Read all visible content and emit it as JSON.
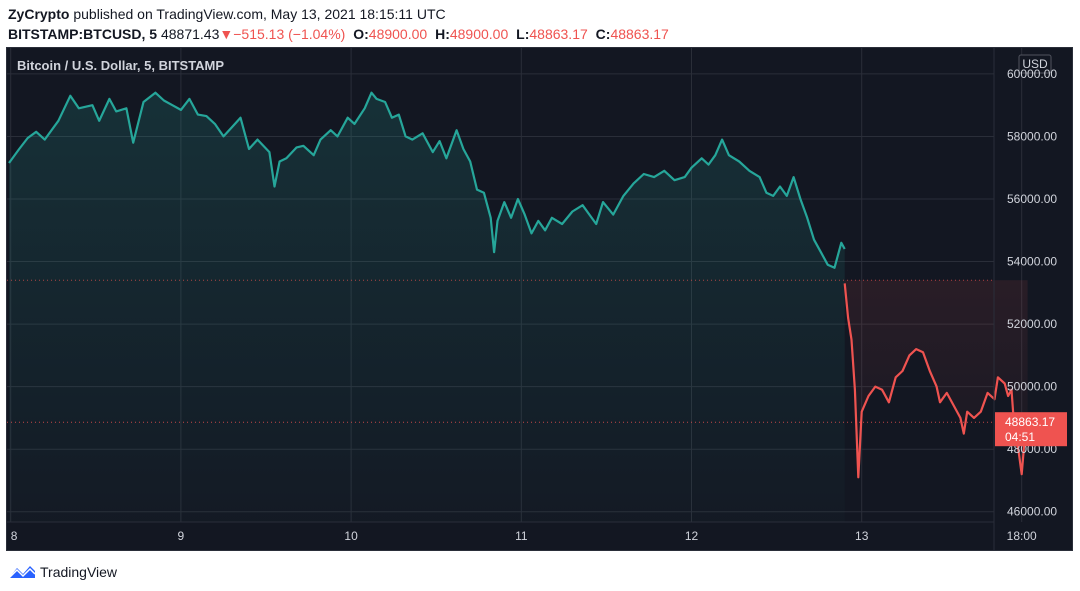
{
  "header": {
    "author": "ZyCrypto",
    "published_text": "published on TradingView.com, May 13, 2021 18:15:11 UTC",
    "symbol": "BITSTAMP:BTCUSD, 5",
    "last_price": "48871.43",
    "change": "−515.13 (−1.04%)",
    "o_label": "O:",
    "o_value": "48900.00",
    "h_label": "H:",
    "h_value": "48900.00",
    "l_label": "L:",
    "l_value": "48863.17",
    "c_label": "C:",
    "c_value": "48863.17"
  },
  "chart": {
    "legend_title": "Bitcoin / U.S. Dollar, 5, BITSTAMP",
    "currency": "USD",
    "price_tag": "48863.17",
    "countdown": "04:51"
  },
  "footer": {
    "brand": "TradingView"
  },
  "colors": {
    "up": "#26a69a",
    "down": "#ef5350",
    "background": "#131722",
    "grid": "#2a2e39"
  },
  "chart_data": {
    "type": "area",
    "title": "Bitcoin / U.S. Dollar, 5, BITSTAMP",
    "xlabel": "",
    "ylabel": "",
    "x_ticks": [
      "8",
      "9",
      "10",
      "11",
      "12",
      "13",
      "18:00"
    ],
    "y_ticks": [
      "46000.00",
      "48000.00",
      "50000.00",
      "52000.00",
      "54000.00",
      "56000.00",
      "58000.00",
      "60000.00"
    ],
    "ylim": [
      45800,
      60700
    ],
    "baseline": 53400,
    "last_value": 48863.17,
    "grid": true,
    "series": [
      {
        "color": "#26a69a",
        "points": [
          [
            7.99,
            57150
          ],
          [
            8.05,
            57600
          ],
          [
            8.1,
            57950
          ],
          [
            8.15,
            58150
          ],
          [
            8.2,
            57900
          ],
          [
            8.28,
            58500
          ],
          [
            8.35,
            59300
          ],
          [
            8.4,
            58900
          ],
          [
            8.48,
            59000
          ],
          [
            8.52,
            58500
          ],
          [
            8.58,
            59200
          ],
          [
            8.62,
            58800
          ],
          [
            8.68,
            58900
          ],
          [
            8.72,
            57800
          ],
          [
            8.78,
            59100
          ],
          [
            8.85,
            59400
          ],
          [
            8.9,
            59150
          ],
          [
            8.95,
            59000
          ],
          [
            9.0,
            58850
          ],
          [
            9.05,
            59200
          ],
          [
            9.1,
            58700
          ],
          [
            9.15,
            58650
          ],
          [
            9.2,
            58400
          ],
          [
            9.25,
            58000
          ],
          [
            9.3,
            58300
          ],
          [
            9.35,
            58600
          ],
          [
            9.4,
            57600
          ],
          [
            9.45,
            57900
          ],
          [
            9.52,
            57500
          ],
          [
            9.55,
            56400
          ],
          [
            9.58,
            57200
          ],
          [
            9.62,
            57300
          ],
          [
            9.68,
            57650
          ],
          [
            9.72,
            57700
          ],
          [
            9.78,
            57400
          ],
          [
            9.82,
            57900
          ],
          [
            9.88,
            58200
          ],
          [
            9.92,
            58000
          ],
          [
            9.98,
            58600
          ],
          [
            10.02,
            58400
          ],
          [
            10.08,
            58900
          ],
          [
            10.12,
            59400
          ],
          [
            10.15,
            59200
          ],
          [
            10.2,
            59100
          ],
          [
            10.24,
            58600
          ],
          [
            10.28,
            58700
          ],
          [
            10.32,
            58000
          ],
          [
            10.36,
            57900
          ],
          [
            10.42,
            58100
          ],
          [
            10.48,
            57500
          ],
          [
            10.52,
            57850
          ],
          [
            10.56,
            57300
          ],
          [
            10.62,
            58200
          ],
          [
            10.66,
            57600
          ],
          [
            10.7,
            57200
          ],
          [
            10.74,
            56300
          ],
          [
            10.78,
            56200
          ],
          [
            10.82,
            55400
          ],
          [
            10.84,
            54300
          ],
          [
            10.86,
            55300
          ],
          [
            10.9,
            55900
          ],
          [
            10.94,
            55400
          ],
          [
            10.98,
            56000
          ],
          [
            11.02,
            55500
          ],
          [
            11.06,
            54900
          ],
          [
            11.1,
            55300
          ],
          [
            11.14,
            55000
          ],
          [
            11.18,
            55400
          ],
          [
            11.24,
            55200
          ],
          [
            11.3,
            55600
          ],
          [
            11.36,
            55800
          ],
          [
            11.4,
            55500
          ],
          [
            11.44,
            55200
          ],
          [
            11.48,
            55900
          ],
          [
            11.54,
            55500
          ],
          [
            11.6,
            56100
          ],
          [
            11.66,
            56500
          ],
          [
            11.72,
            56800
          ],
          [
            11.78,
            56700
          ],
          [
            11.84,
            56900
          ],
          [
            11.9,
            56600
          ],
          [
            11.96,
            56700
          ],
          [
            12.0,
            57000
          ],
          [
            12.06,
            57300
          ],
          [
            12.1,
            57100
          ],
          [
            12.14,
            57400
          ],
          [
            12.18,
            57900
          ],
          [
            12.22,
            57400
          ],
          [
            12.28,
            57200
          ],
          [
            12.34,
            56900
          ],
          [
            12.4,
            56700
          ],
          [
            12.44,
            56200
          ],
          [
            12.48,
            56100
          ],
          [
            12.52,
            56400
          ],
          [
            12.56,
            56100
          ],
          [
            12.6,
            56700
          ],
          [
            12.64,
            56000
          ],
          [
            12.68,
            55400
          ],
          [
            12.72,
            54700
          ],
          [
            12.76,
            54300
          ],
          [
            12.8,
            53900
          ],
          [
            12.84,
            53800
          ],
          [
            12.88,
            54600
          ],
          [
            12.9,
            54400
          ]
        ]
      },
      {
        "color": "#ef5350",
        "points": [
          [
            12.9,
            53300
          ],
          [
            12.92,
            52200
          ],
          [
            12.94,
            51500
          ],
          [
            12.96,
            49900
          ],
          [
            12.98,
            47100
          ],
          [
            13.0,
            49200
          ],
          [
            13.04,
            49700
          ],
          [
            13.08,
            50000
          ],
          [
            13.12,
            49900
          ],
          [
            13.16,
            49500
          ],
          [
            13.2,
            50300
          ],
          [
            13.24,
            50500
          ],
          [
            13.28,
            51000
          ],
          [
            13.32,
            51200
          ],
          [
            13.36,
            51100
          ],
          [
            13.4,
            50500
          ],
          [
            13.44,
            50000
          ],
          [
            13.46,
            49500
          ],
          [
            13.5,
            49800
          ],
          [
            13.54,
            49400
          ],
          [
            13.58,
            49000
          ],
          [
            13.6,
            48500
          ],
          [
            13.62,
            49200
          ],
          [
            13.66,
            49000
          ],
          [
            13.7,
            49200
          ],
          [
            13.74,
            49800
          ],
          [
            13.78,
            49600
          ],
          [
            13.8,
            50300
          ],
          [
            13.84,
            50100
          ],
          [
            13.86,
            49700
          ],
          [
            13.88,
            49900
          ],
          [
            13.9,
            48400
          ],
          [
            13.92,
            48000
          ],
          [
            13.94,
            47200
          ],
          [
            13.96,
            48500
          ],
          [
            13.975,
            48863.17
          ]
        ]
      }
    ]
  }
}
